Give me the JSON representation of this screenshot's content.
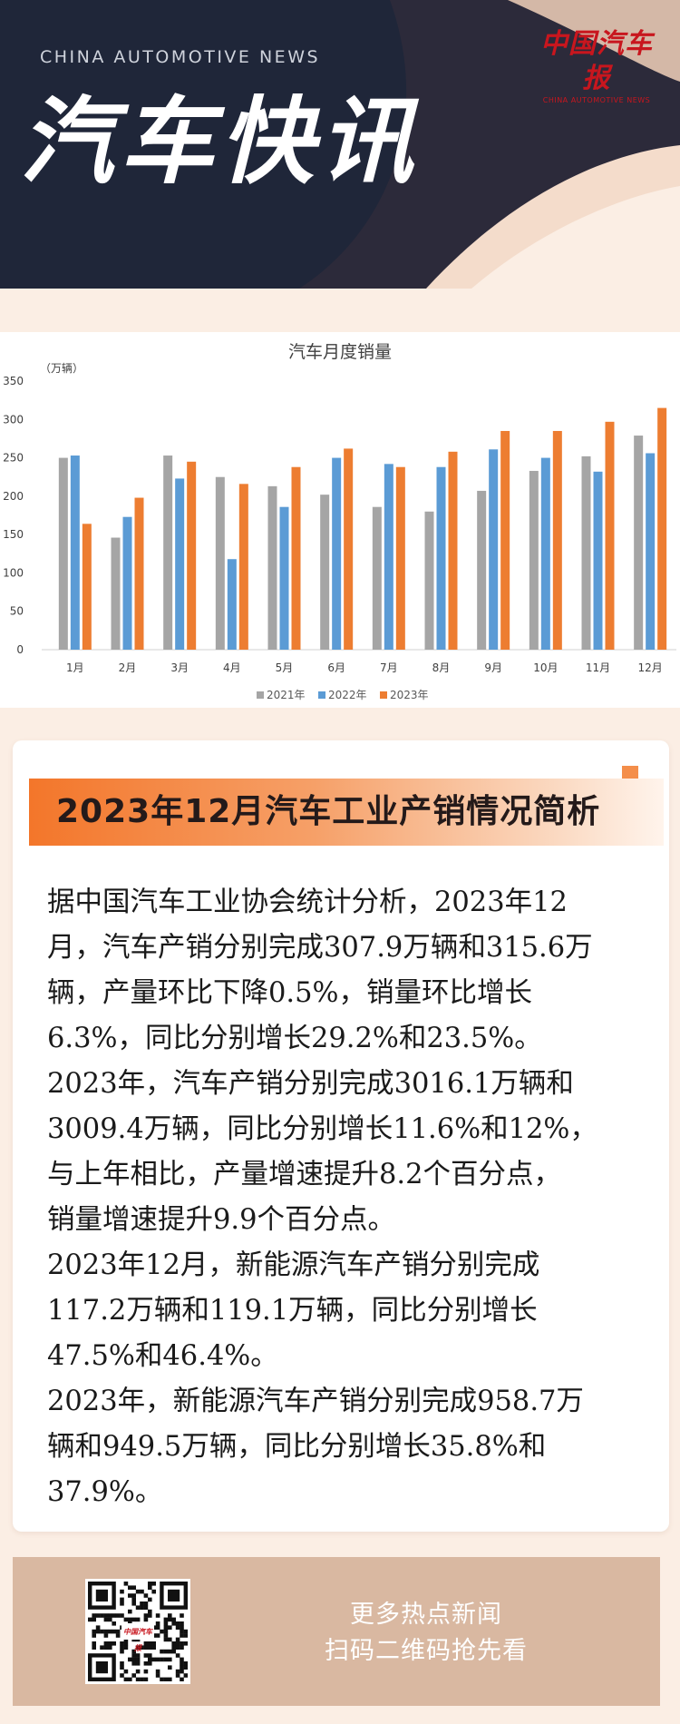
{
  "header": {
    "en_title": "CHINA AUTOMOTIVE NEWS",
    "cn_title": "汽车快讯",
    "logo_cn": "中国汽车报",
    "logo_en": "CHINA AUTOMOTIVE NEWS"
  },
  "colors": {
    "header_bg": "#1f2639",
    "page_bg": "#fbeee4",
    "accent_orange": "#f3762a",
    "logo_red": "#c8161e",
    "footer_bg": "#d9b8a1",
    "series_2021": "#a5a5a5",
    "series_2022": "#5b9bd5",
    "series_2023": "#ed7d31"
  },
  "chart_data": {
    "type": "bar",
    "title": "汽车月度销量",
    "unit_label": "（万辆）",
    "categories": [
      "1月",
      "2月",
      "3月",
      "4月",
      "5月",
      "6月",
      "7月",
      "8月",
      "9月",
      "10月",
      "11月",
      "12月"
    ],
    "ylim": [
      0,
      350
    ],
    "yticks": [
      0,
      50,
      100,
      150,
      200,
      250,
      300,
      350
    ],
    "grid": false,
    "legend_position": "bottom",
    "series": [
      {
        "name": "2021年",
        "color": "#a5a5a5",
        "values": [
          250,
          146,
          253,
          225,
          213,
          202,
          186,
          180,
          207,
          233,
          252,
          279
        ]
      },
      {
        "name": "2022年",
        "color": "#5b9bd5",
        "values": [
          253,
          173,
          223,
          118,
          186,
          250,
          242,
          238,
          261,
          250,
          232,
          256
        ]
      },
      {
        "name": "2023年",
        "color": "#ed7d31",
        "values": [
          164,
          198,
          245,
          216,
          238,
          262,
          238,
          258,
          285,
          285,
          297,
          315
        ]
      }
    ]
  },
  "article": {
    "heading": "2023年12月汽车工业产销情况简析",
    "lines": [
      "据中国汽车工业协会统计分析，2023年12",
      "月，汽车产销分别完成307.9万辆和315.6万",
      "辆，产量环比下降0.5%，销量环比增长",
      "6.3%，同比分别增长29.2%和23.5%。",
      "2023年，汽车产销分别完成3016.1万辆和",
      "3009.4万辆，同比分别增长11.6%和12%，",
      "与上年相比，产量增速提升8.2个百分点，",
      "销量增速提升9.9个百分点。",
      "2023年12月，新能源汽车产销分别完成",
      "117.2万辆和119.1万辆，同比分别增长",
      "47.5%和46.4%。",
      "2023年，新能源汽车产销分别完成958.7万",
      "辆和949.5万辆，同比分别增长35.8%和",
      "37.9%。"
    ]
  },
  "footer": {
    "line1": "更多热点新闻",
    "line2": "扫码二维码抢先看",
    "qr_logo": "中国汽车报"
  }
}
